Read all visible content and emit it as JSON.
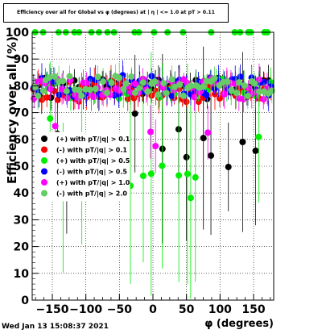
{
  "chart_data": {
    "type": "scatter",
    "title": "Efficiency over all for Global vs φ (degrees) at | η | <= 1.0 at pT > 0.11",
    "xlabel": "φ (degrees)",
    "ylabel": "Efficiency over all (%)",
    "xlim": [
      -180,
      180
    ],
    "ylim": [
      0,
      100
    ],
    "xticks": [
      -150,
      -100,
      -50,
      0,
      50,
      100,
      150
    ],
    "xtick_labels": [
      "−150",
      "−100",
      "−50",
      "0",
      "50",
      "100",
      "150"
    ],
    "yticks": [
      0,
      10,
      20,
      30,
      40,
      50,
      60,
      70,
      80,
      90,
      100
    ],
    "grid": true,
    "legend_placement": "center-left",
    "series": [
      {
        "name": "(+) with pT/|q| > 0.1",
        "color": "#000000"
      },
      {
        "name": "(-) with pT/|q| > 0.1",
        "color": "#ff0000"
      },
      {
        "name": "(+) with pT/|q| > 0.5",
        "color": "#00ee00"
      },
      {
        "name": "(-) with pT/|q| > 0.5",
        "color": "#0000ff"
      },
      {
        "name": "(+) with pT/|q| > 1.0",
        "color": "#ff00ff"
      },
      {
        "name": "(-) with pT/|q| > 2.0",
        "color": "#66cc66"
      }
    ]
  },
  "footer": {
    "timestamp": "Wed Jan 13 15:08:37 2021"
  }
}
